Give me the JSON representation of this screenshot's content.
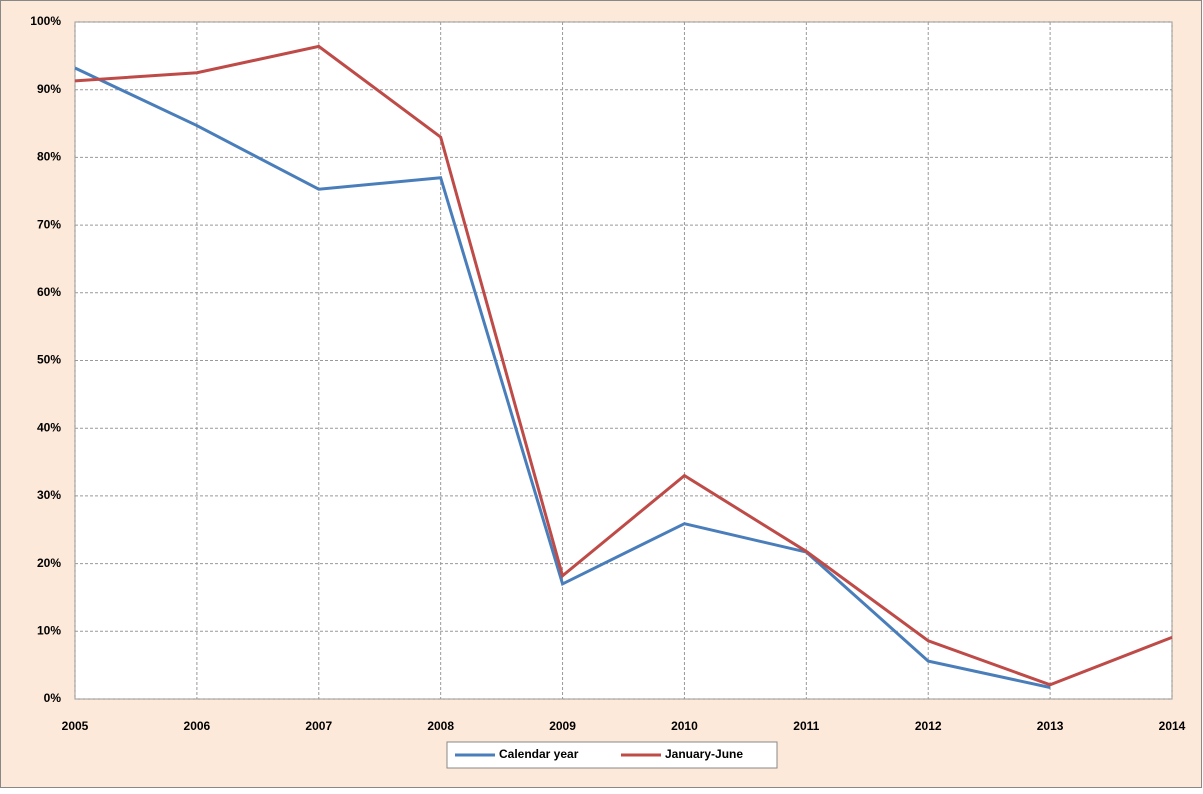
{
  "chart_data": {
    "type": "line",
    "x": [
      2005,
      2006,
      2007,
      2008,
      2009,
      2010,
      2011,
      2012,
      2013,
      2014
    ],
    "xlim": [
      2005,
      2014
    ],
    "xticks": [
      2005,
      2006,
      2007,
      2008,
      2009,
      2010,
      2011,
      2012,
      2013,
      2014
    ],
    "ylim": [
      0,
      100
    ],
    "yticks": [
      {
        "value": 0,
        "label": "0%"
      },
      {
        "value": 10,
        "label": "10%"
      },
      {
        "value": 20,
        "label": "20%"
      },
      {
        "value": 30,
        "label": "30%"
      },
      {
        "value": 40,
        "label": "40%"
      },
      {
        "value": 50,
        "label": "50%"
      },
      {
        "value": 60,
        "label": "60%"
      },
      {
        "value": 70,
        "label": "70%"
      },
      {
        "value": 80,
        "label": "80%"
      },
      {
        "value": 90,
        "label": "90%"
      },
      {
        "value": 100,
        "label": "100%"
      }
    ],
    "grid": true,
    "legend": "bottom",
    "series": [
      {
        "name": "Calendar year",
        "color": "#4a7ebb",
        "values": [
          93.2,
          84.7,
          75.3,
          77.0,
          17.0,
          25.9,
          21.7,
          5.6,
          1.7,
          null
        ]
      },
      {
        "name": "January-June",
        "color": "#be4b48",
        "values": [
          91.3,
          92.5,
          96.4,
          83.0,
          18.2,
          33.0,
          21.8,
          8.6,
          2.1,
          9.1
        ]
      }
    ]
  }
}
